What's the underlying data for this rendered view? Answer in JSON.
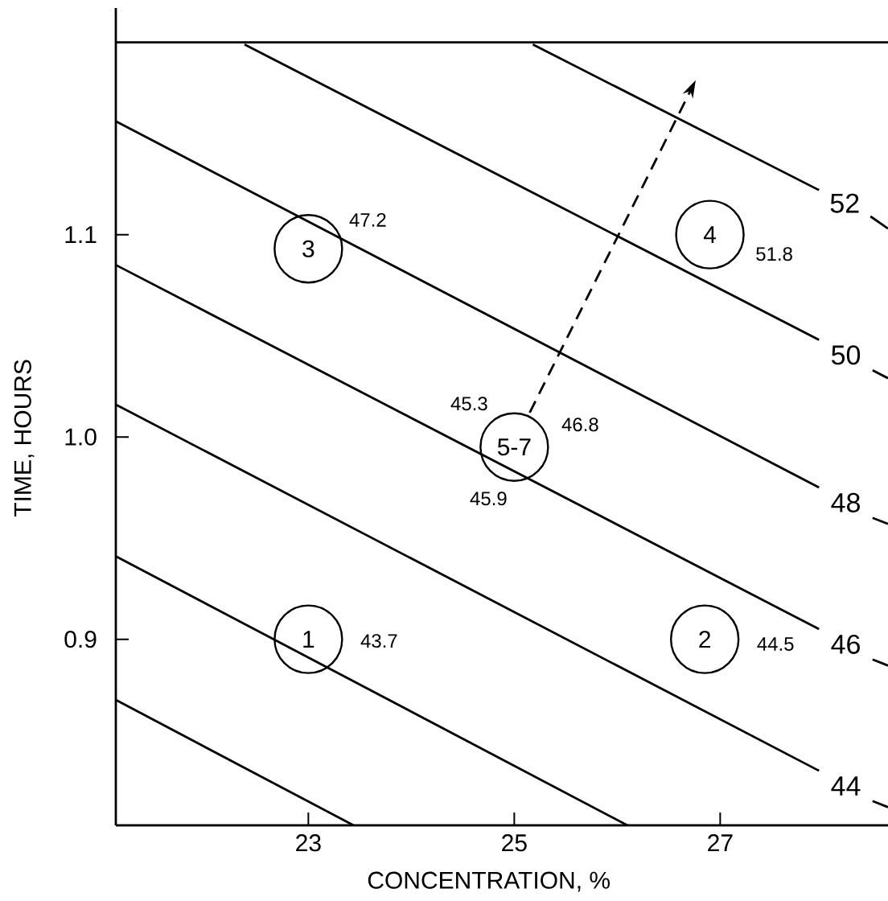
{
  "chart_data": {
    "type": "line",
    "xlabel": "CONCENTRATION, %",
    "ylabel": "TIME, HOURS",
    "xlim": [
      21.13,
      28.63
    ],
    "ylim": [
      0.808,
      1.212
    ],
    "xticks": [
      23,
      25,
      27
    ],
    "yticks": [
      0.9,
      {
        "value": 1.0,
        "label": "1.0"
      },
      1.1
    ],
    "series": [
      {
        "name": "52",
        "color": "#000000",
        "x": [
          25.18,
          27.96,
          28.22,
          28.46,
          28.63
        ],
        "values": [
          1.194,
          1.122,
          null,
          1.109,
          1.103
        ]
      },
      {
        "name": "50",
        "color": "#000000",
        "x": [
          22.38,
          27.96,
          28.22,
          28.48,
          28.63
        ],
        "values": [
          1.194,
          1.048,
          null,
          1.033,
          1.029
        ]
      },
      {
        "name": "48",
        "color": "#000000",
        "x": [
          21.13,
          27.96,
          28.22,
          28.48,
          28.63
        ],
        "values": [
          1.156,
          0.975,
          null,
          0.96,
          0.957
        ]
      },
      {
        "name": "46",
        "color": "#000000",
        "x": [
          21.13,
          27.96,
          28.22,
          28.48,
          28.63
        ],
        "values": [
          1.085,
          0.905,
          null,
          0.89,
          0.887
        ]
      },
      {
        "name": "44",
        "color": "#000000",
        "x": [
          21.13,
          27.96,
          28.22,
          28.48,
          28.63
        ],
        "values": [
          1.016,
          0.835,
          null,
          0.82,
          0.817
        ]
      },
      {
        "color": "#000000",
        "x": [
          21.13,
          26.1
        ],
        "values": [
          0.941,
          0.808
        ]
      },
      {
        "color": "#000000",
        "x": [
          21.13,
          23.44
        ],
        "values": [
          0.87,
          0.808
        ]
      },
      {
        "type": "line",
        "line_style": "dashed",
        "color": "#000000",
        "x": [
          25.15,
          26.71
        ],
        "values": [
          1.012,
          1.171
        ]
      },
      {
        "type": "scatter",
        "marker": "circle",
        "color": "#000000",
        "x": [
          23,
          26.85,
          23,
          26.9,
          25
        ],
        "values": [
          0.9,
          0.9,
          1.093,
          1.1,
          0.995
        ]
      }
    ],
    "ref_lines": [
      {
        "axis": "y",
        "value": 1.195,
        "color": "#000000"
      }
    ],
    "annotations": [
      {
        "text": "1",
        "x": 23,
        "y": 0.9
      },
      {
        "text": "2",
        "x": 26.85,
        "y": 0.9
      },
      {
        "text": "3",
        "x": 23,
        "y": 1.093
      },
      {
        "text": "4",
        "x": 26.9,
        "y": 1.1
      },
      {
        "text": "5-7",
        "x": 25,
        "y": 0.995
      },
      {
        "text": "43.7",
        "x": 23,
        "y": 0.9
      },
      {
        "text": "44.5",
        "x": 26.85,
        "y": 0.9
      },
      {
        "text": "47.2",
        "x": 23,
        "y": 1.093
      },
      {
        "text": "51.8",
        "x": 26.9,
        "y": 1.1
      },
      {
        "text": "45.3",
        "x": 25,
        "y": 0.995
      },
      {
        "text": "46.8",
        "x": 25,
        "y": 0.995
      },
      {
        "text": "45.9",
        "x": 25,
        "y": 0.995
      }
    ]
  }
}
